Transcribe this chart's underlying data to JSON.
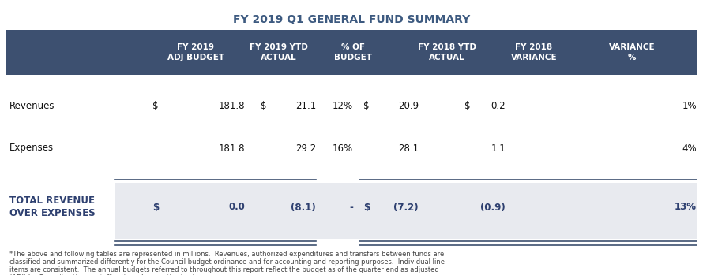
{
  "title": "FY 2019 Q1 GENERAL FUND SUMMARY",
  "title_color": "#3d5a80",
  "header_bg_color": "#3d5070",
  "header_text_color": "#ffffff",
  "total_row_bg_color": "#e8eaef",
  "total_row_text_color": "#2e4070",
  "body_text_color": "#111111",
  "row_label_color": "#111111",
  "total_label_color": "#2e4070",
  "footnote_color": "#444444",
  "line_color": "#3d5070",
  "table_bg_color": "#ffffff",
  "title_fontsize": 10,
  "header_fontsize": 7.5,
  "body_fontsize": 8.5,
  "footnote_fontsize": 6.0,
  "headers": [
    "FY 2019\nADJ BUDGET",
    "FY 2019 YTD\nACTUAL",
    "% OF\nBUDGET",
    "FY 2018 YTD\nACTUAL",
    "FY 2018\nVARIANCE",
    "VARIANCE\n%"
  ],
  "footnote": "*The above and following tables are represented in millions.  Revenues, authorized expenditures and transfers between funds are classified and summarized differently for the Council budget ordinance and for accounting and reporting purposes.  Individual line items are consistent.  The annual budgets referred to throughout this report reflect the budget as of the quarter end as adjusted (ADJ) by Council action or staff action where authorized."
}
